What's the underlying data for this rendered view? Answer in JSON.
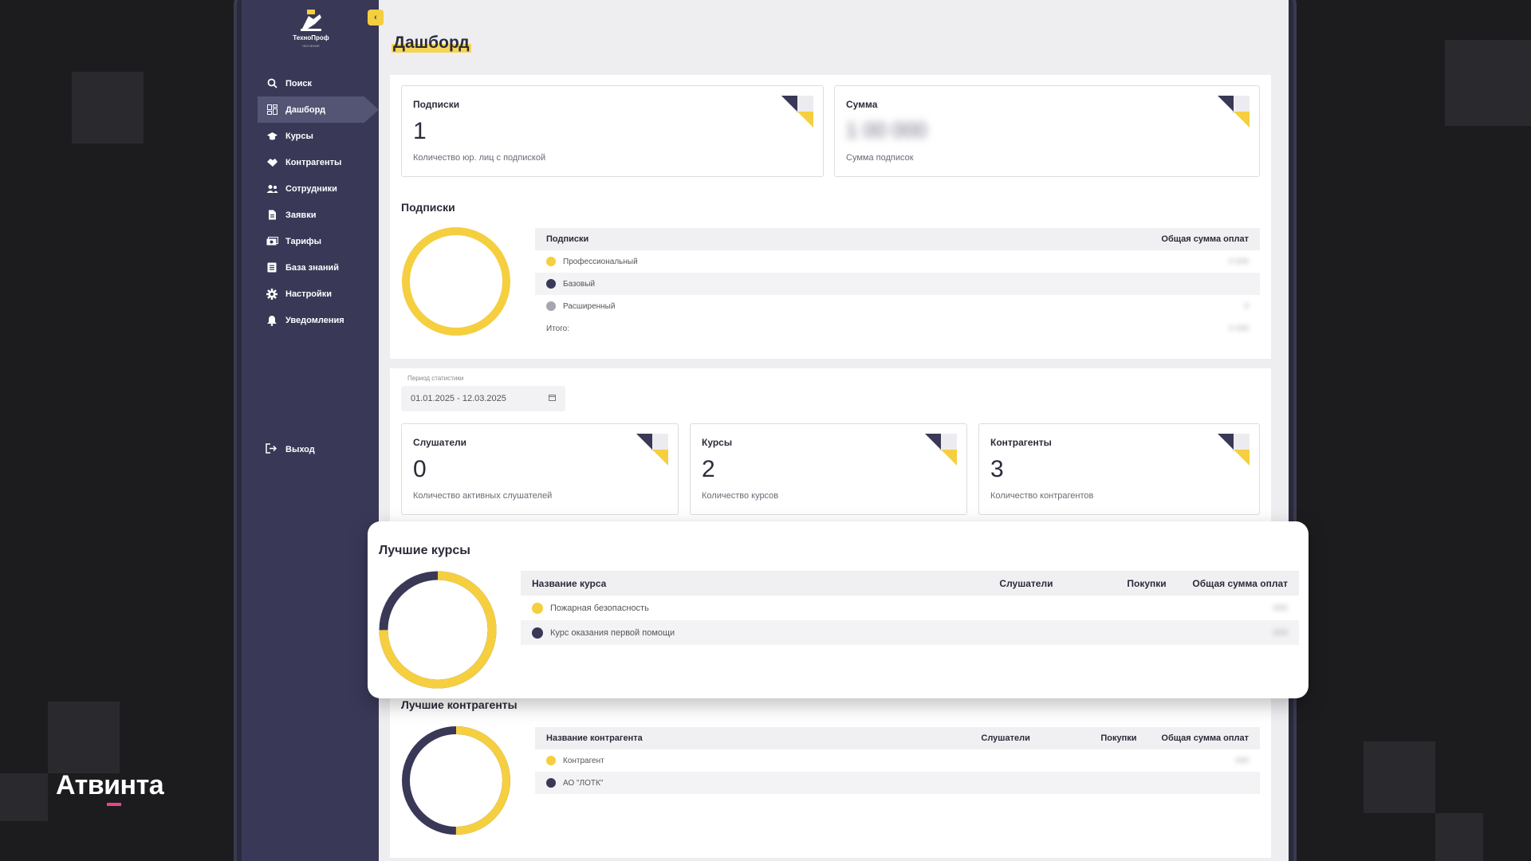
{
  "colors": {
    "sidebar": "#393857",
    "accent": "#f5cf3f",
    "navy": "#393857",
    "grey_dot": "#a6a6b0"
  },
  "brand": {
    "name": "Атвинта"
  },
  "sidebar": {
    "logo_name": "ТехноПроф",
    "logo_sub": "ОБУЧЕНИЕ",
    "collapse_icon": "chevron-left-icon",
    "items": [
      {
        "label": "Поиск",
        "icon": "search-icon"
      },
      {
        "label": "Дашборд",
        "icon": "dashboard-icon",
        "active": true
      },
      {
        "label": "Курсы",
        "icon": "graduation-cap-icon"
      },
      {
        "label": "Контрагенты",
        "icon": "handshake-icon"
      },
      {
        "label": "Сотрудники",
        "icon": "users-icon"
      },
      {
        "label": "Заявки",
        "icon": "document-icon"
      },
      {
        "label": "Тарифы",
        "icon": "money-icon"
      },
      {
        "label": "База знаний",
        "icon": "book-icon"
      },
      {
        "label": "Настройки",
        "icon": "gear-icon"
      },
      {
        "label": "Уведомления",
        "icon": "bell-icon"
      }
    ],
    "logout_label": "Выход"
  },
  "page": {
    "title": "Дашборд"
  },
  "top_cards": [
    {
      "label": "Подписки",
      "value": "1",
      "desc": "Количество юр. лиц с подпиской"
    },
    {
      "label": "Сумма",
      "value": "1 00 000",
      "desc": "Сумма подписок",
      "blurred": true
    }
  ],
  "subscriptions": {
    "title": "Подписки",
    "col_name": "Подписки",
    "col_total": "Общая сумма оплат",
    "rows": [
      {
        "name": "Профессиональный",
        "color": "#f5cf3f"
      },
      {
        "name": "Базовый",
        "color": "#393857"
      },
      {
        "name": "Расширенный",
        "color": "#a6a6b0"
      }
    ],
    "total_label": "Итого:",
    "donut_share": 1.0
  },
  "period": {
    "label": "Период статистики",
    "value": "01.01.2025 - 12.03.2025",
    "icon": "calendar-icon"
  },
  "stat_cards": [
    {
      "label": "Слушатели",
      "value": "0",
      "desc": "Количество активных слушателей"
    },
    {
      "label": "Курсы",
      "value": "2",
      "desc": "Количество курсов"
    },
    {
      "label": "Контрагенты",
      "value": "3",
      "desc": "Количество контрагентов"
    }
  ],
  "best_courses": {
    "title": "Лучшие курсы",
    "cols": [
      "Название курса",
      "Слушатели",
      "Покупки",
      "Общая сумма оплат"
    ],
    "rows": [
      {
        "name": "Пожарная безопасность",
        "color": "#f5cf3f"
      },
      {
        "name": "Курс оказания первой помощи",
        "color": "#393857"
      }
    ],
    "donut_share": 0.75
  },
  "best_contractors": {
    "title": "Лучшие контрагенты",
    "cols": [
      "Название контрагента",
      "Слушатели",
      "Покупки",
      "Общая сумма оплат"
    ],
    "rows": [
      {
        "name": "Контрагент",
        "color": "#f5cf3f"
      },
      {
        "name": "АО \"ЛОТК\"",
        "color": "#393857"
      }
    ],
    "donut_share": 0.5
  }
}
